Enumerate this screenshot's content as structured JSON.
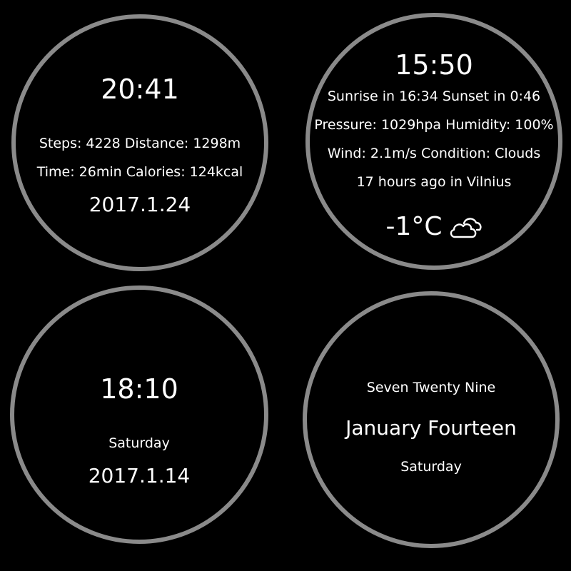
{
  "faces": {
    "steps": {
      "time": "20:41",
      "line1": "Steps: 4228 Distance: 1298m",
      "line2": "Time: 26min Calories: 124kcal",
      "date": "2017.1.24"
    },
    "weather": {
      "time": "15:50",
      "line1": "Sunrise in 16:34 Sunset in 0:46",
      "line2": "Pressure: 1029hpa Humidity: 100%",
      "line3": "Wind: 2.1m/s Condition: Clouds",
      "line4": "17 hours ago in Vilnius",
      "temperature": "-1°C",
      "condition_icon": "cloud-icon"
    },
    "simple": {
      "time": "18:10",
      "day": "Saturday",
      "date": "2017.1.14"
    },
    "words": {
      "time_words": "Seven Twenty Nine",
      "date_words": "January Fourteen",
      "day": "Saturday"
    }
  },
  "colors": {
    "background": "#000000",
    "ring": "#8a8a8a",
    "text": "#ffffff"
  }
}
